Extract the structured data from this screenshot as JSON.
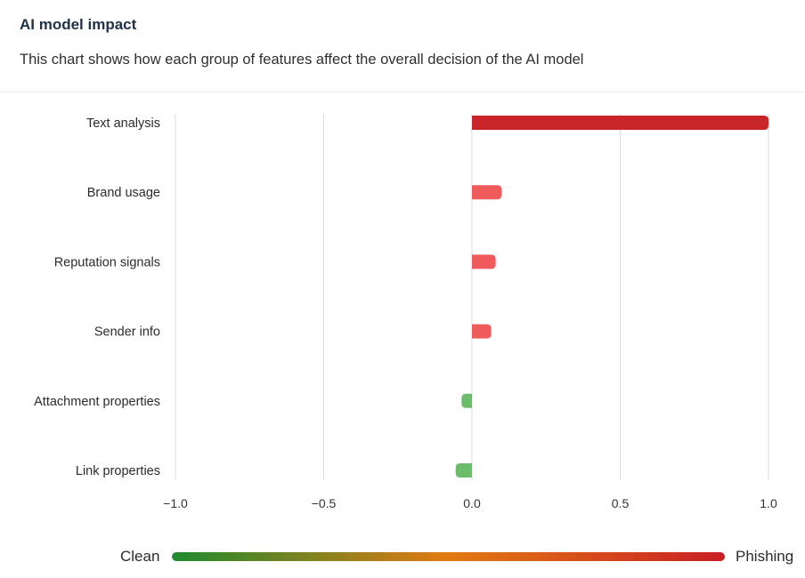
{
  "header": {
    "title": "AI model impact",
    "subtitle": "This chart shows how each group of features affect the overall decision of the AI model"
  },
  "legend": {
    "low_label": "Clean",
    "high_label": "Phishing",
    "gradient_colors": [
      "#1e8a2e",
      "#e27a12",
      "#c91f24"
    ]
  },
  "chart_data": {
    "type": "bar",
    "orientation": "horizontal",
    "categories": [
      "Text analysis",
      "Brand usage",
      "Reputation signals",
      "Sender info",
      "Attachment properties",
      "Link properties"
    ],
    "values": [
      1.0,
      0.1,
      0.08,
      0.065,
      -0.035,
      -0.055
    ],
    "xlim": [
      -1.0,
      1.0
    ],
    "xticks": [
      -1.0,
      -0.5,
      0.0,
      0.5,
      1.0
    ],
    "xtick_labels": [
      "−1.0",
      "−0.5",
      "0.0",
      "0.5",
      "1.0"
    ],
    "grid": true,
    "colors": {
      "strong_positive": "#c9262a",
      "positive": "#ef5b5b",
      "negative": "#6cbd6a",
      "grid": "#dcdcdc"
    }
  }
}
